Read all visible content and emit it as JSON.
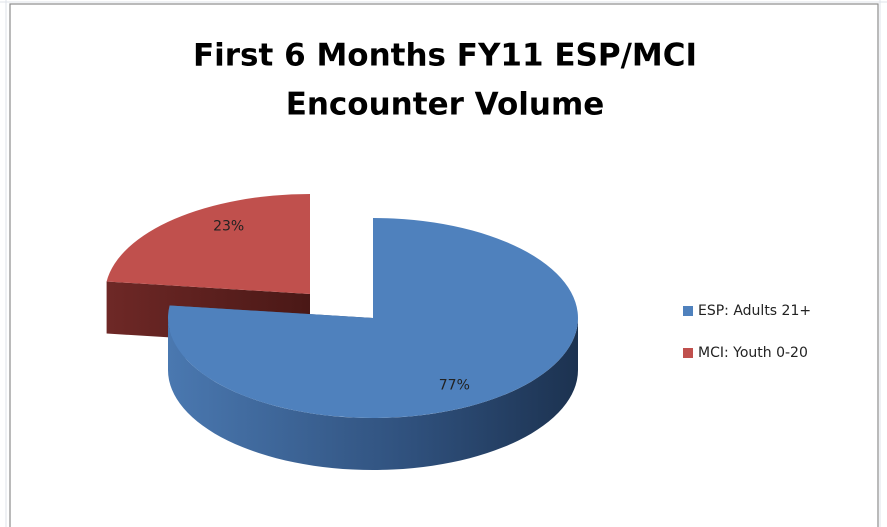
{
  "chart_data": {
    "type": "pie3d",
    "title": [
      "First 6 Months FY11 ESP/MCI",
      "Encounter Volume"
    ],
    "categories": [
      "ESP: Adults 21+",
      "MCI: Youth 0-20"
    ],
    "values": [
      77,
      23
    ],
    "value_labels": [
      "77%",
      "23%"
    ],
    "colors": [
      "#4f81bd",
      "#c0504d"
    ],
    "exploded": [
      false,
      true
    ],
    "legend": "right"
  }
}
